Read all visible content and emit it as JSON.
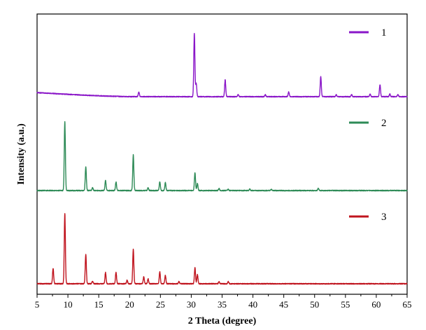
{
  "chart_data": {
    "type": "line",
    "title": "",
    "xlabel": "2 Theta (degree)",
    "ylabel": "Intensity  (a.u.)",
    "xlim": [
      5,
      65
    ],
    "x_ticks": [
      5,
      10,
      15,
      20,
      25,
      30,
      35,
      40,
      45,
      50,
      55,
      60,
      65
    ],
    "y_ticks_shown": false,
    "grid": false,
    "legend_placement": "inline, top-right of each trace",
    "series": [
      {
        "name": "1",
        "color": "#8a16c8",
        "baseline": [
          [
            5,
            0.06
          ],
          [
            8,
            0.045
          ],
          [
            12,
            0.025
          ],
          [
            16,
            0.01
          ],
          [
            20,
            0.0
          ],
          [
            25,
            0.0
          ],
          [
            30,
            0.0
          ],
          [
            65,
            0.0
          ]
        ],
        "peaks": [
          [
            21.5,
            0.07
          ],
          [
            30.5,
            0.94
          ],
          [
            30.8,
            0.2
          ],
          [
            35.5,
            0.25
          ],
          [
            37.6,
            0.03
          ],
          [
            42.0,
            0.03
          ],
          [
            45.8,
            0.07
          ],
          [
            51.0,
            0.3
          ],
          [
            53.5,
            0.03
          ],
          [
            56.0,
            0.03
          ],
          [
            59.0,
            0.04
          ],
          [
            60.6,
            0.18
          ],
          [
            62.2,
            0.04
          ],
          [
            63.5,
            0.03
          ]
        ]
      },
      {
        "name": "2",
        "color": "#2e8b57",
        "baseline": [
          [
            5,
            0.0
          ],
          [
            65,
            0.0
          ]
        ],
        "peaks": [
          [
            9.5,
            0.96
          ],
          [
            12.9,
            0.33
          ],
          [
            14.0,
            0.04
          ],
          [
            16.1,
            0.14
          ],
          [
            17.8,
            0.12
          ],
          [
            20.6,
            0.5
          ],
          [
            23.0,
            0.04
          ],
          [
            24.9,
            0.12
          ],
          [
            25.8,
            0.11
          ],
          [
            30.6,
            0.25
          ],
          [
            31.0,
            0.1
          ],
          [
            34.5,
            0.03
          ],
          [
            36.0,
            0.02
          ],
          [
            39.5,
            0.02
          ],
          [
            43.0,
            0.02
          ],
          [
            50.6,
            0.03
          ]
        ]
      },
      {
        "name": "3",
        "color": "#c0141e",
        "baseline": [
          [
            5,
            0.0
          ],
          [
            65,
            0.0
          ]
        ],
        "peaks": [
          [
            7.6,
            0.22
          ],
          [
            9.5,
            1.0
          ],
          [
            12.9,
            0.42
          ],
          [
            14.0,
            0.04
          ],
          [
            16.1,
            0.16
          ],
          [
            17.8,
            0.16
          ],
          [
            19.6,
            0.05
          ],
          [
            20.6,
            0.49
          ],
          [
            22.3,
            0.1
          ],
          [
            23.0,
            0.07
          ],
          [
            24.9,
            0.17
          ],
          [
            25.8,
            0.12
          ],
          [
            28.0,
            0.03
          ],
          [
            30.6,
            0.23
          ],
          [
            31.0,
            0.13
          ],
          [
            34.5,
            0.03
          ],
          [
            36.0,
            0.03
          ]
        ]
      }
    ]
  }
}
